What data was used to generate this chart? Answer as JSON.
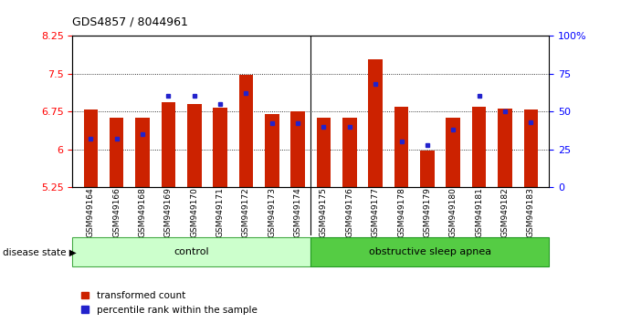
{
  "title": "GDS4857 / 8044961",
  "samples": [
    "GSM949164",
    "GSM949166",
    "GSM949168",
    "GSM949169",
    "GSM949170",
    "GSM949171",
    "GSM949172",
    "GSM949173",
    "GSM949174",
    "GSM949175",
    "GSM949176",
    "GSM949177",
    "GSM949178",
    "GSM949179",
    "GSM949180",
    "GSM949181",
    "GSM949182",
    "GSM949183"
  ],
  "red_values": [
    6.78,
    6.62,
    6.62,
    6.93,
    6.9,
    6.83,
    7.47,
    6.7,
    6.76,
    6.63,
    6.63,
    7.78,
    6.85,
    5.97,
    6.62,
    6.85,
    6.8,
    6.78
  ],
  "blue_pct": [
    32,
    32,
    35,
    60,
    60,
    55,
    62,
    42,
    42,
    40,
    40,
    68,
    30,
    28,
    38,
    60,
    50,
    43
  ],
  "n_control": 9,
  "ylim_left": [
    5.25,
    8.25
  ],
  "ylim_right": [
    0,
    100
  ],
  "yticks_left": [
    5.25,
    6.0,
    6.75,
    7.5,
    8.25
  ],
  "yticks_right": [
    0,
    25,
    50,
    75,
    100
  ],
  "ytick_labels_left": [
    "5.25",
    "6",
    "6.75",
    "7.5",
    "8.25"
  ],
  "ytick_labels_right": [
    "0",
    "25",
    "50",
    "75",
    "100%"
  ],
  "bar_color": "#cc2200",
  "dot_color": "#2222cc",
  "ctrl_color": "#ccffcc",
  "apnea_color": "#55cc44",
  "group_labels": [
    "control",
    "obstructive sleep apnea"
  ],
  "legend_red": "transformed count",
  "legend_blue": "percentile rank within the sample",
  "disease_state_label": "disease state"
}
